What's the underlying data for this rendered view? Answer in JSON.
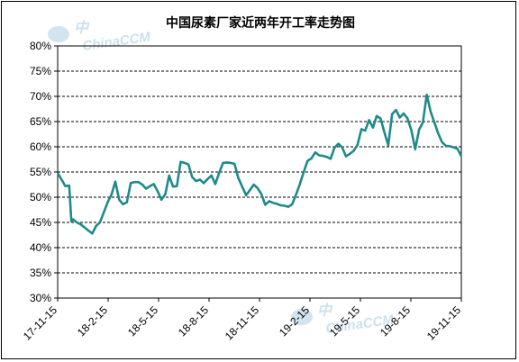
{
  "chart_data": {
    "type": "line",
    "title": "中国尿素厂家近两年开工率走势图",
    "xlabel": "",
    "ylabel": "",
    "ylim": [
      30,
      80
    ],
    "y_ticks": [
      "30%",
      "35%",
      "40%",
      "45%",
      "50%",
      "55%",
      "60%",
      "65%",
      "70%",
      "75%",
      "80%"
    ],
    "x_ticks": [
      "17-11-15",
      "18-2-15",
      "18-5-15",
      "18-8-15",
      "18-11-15",
      "19-2-15",
      "19-5-15",
      "19-8-15",
      "19-11-15"
    ],
    "grid": "horizontal dashed",
    "colors": {
      "line": "#1f8a8a",
      "grid": "#000000",
      "axis": "#000000"
    },
    "watermark": [
      "中",
      "ChinaCCM"
    ],
    "series": [
      {
        "name": "",
        "points": [
          [
            "2017-11-15",
            54.8
          ],
          [
            "2017-11-22",
            53.5
          ],
          [
            "2017-11-29",
            52.2
          ],
          [
            "2017-12-06",
            52.3
          ],
          [
            "2017-12-10",
            45.2
          ],
          [
            "2017-12-13",
            45.6
          ],
          [
            "2017-12-20",
            45.0
          ],
          [
            "2017-12-27",
            44.6
          ],
          [
            "2018-01-03",
            44.0
          ],
          [
            "2018-01-10",
            43.4
          ],
          [
            "2018-01-17",
            42.8
          ],
          [
            "2018-01-24",
            44.3
          ],
          [
            "2018-01-31",
            45.0
          ],
          [
            "2018-02-07",
            47.0
          ],
          [
            "2018-02-14",
            49.0
          ],
          [
            "2018-02-21",
            50.5
          ],
          [
            "2018-02-28",
            53.1
          ],
          [
            "2018-03-07",
            49.5
          ],
          [
            "2018-03-14",
            48.6
          ],
          [
            "2018-03-21",
            49.0
          ],
          [
            "2018-03-28",
            52.8
          ],
          [
            "2018-04-04",
            53.0
          ],
          [
            "2018-04-11",
            53.0
          ],
          [
            "2018-04-18",
            52.5
          ],
          [
            "2018-04-25",
            51.7
          ],
          [
            "2018-05-02",
            52.2
          ],
          [
            "2018-05-09",
            52.6
          ],
          [
            "2018-05-16",
            51.2
          ],
          [
            "2018-05-23",
            49.5
          ],
          [
            "2018-05-30",
            50.6
          ],
          [
            "2018-06-06",
            54.3
          ],
          [
            "2018-06-13",
            52.1
          ],
          [
            "2018-06-20",
            52.2
          ],
          [
            "2018-06-27",
            57.0
          ],
          [
            "2018-07-04",
            56.8
          ],
          [
            "2018-07-11",
            56.5
          ],
          [
            "2018-07-18",
            54.0
          ],
          [
            "2018-07-25",
            53.2
          ],
          [
            "2018-08-01",
            53.5
          ],
          [
            "2018-08-08",
            52.8
          ],
          [
            "2018-08-15",
            53.6
          ],
          [
            "2018-08-22",
            54.3
          ],
          [
            "2018-08-29",
            52.6
          ],
          [
            "2018-09-05",
            54.8
          ],
          [
            "2018-09-12",
            56.8
          ],
          [
            "2018-09-19",
            56.9
          ],
          [
            "2018-09-26",
            56.8
          ],
          [
            "2018-10-03",
            56.6
          ],
          [
            "2018-10-10",
            53.8
          ],
          [
            "2018-10-17",
            52.1
          ],
          [
            "2018-10-24",
            50.4
          ],
          [
            "2018-10-31",
            51.4
          ],
          [
            "2018-11-07",
            52.5
          ],
          [
            "2018-11-14",
            51.8
          ],
          [
            "2018-11-21",
            50.6
          ],
          [
            "2018-11-28",
            48.5
          ],
          [
            "2018-12-05",
            49.2
          ],
          [
            "2018-12-12",
            48.9
          ],
          [
            "2018-12-19",
            48.7
          ],
          [
            "2018-12-26",
            48.4
          ],
          [
            "2019-01-02",
            48.3
          ],
          [
            "2019-01-09",
            48.1
          ],
          [
            "2019-01-16",
            48.6
          ],
          [
            "2019-01-23",
            50.5
          ],
          [
            "2019-01-30",
            52.6
          ],
          [
            "2019-02-06",
            55.0
          ],
          [
            "2019-02-13",
            57.2
          ],
          [
            "2019-02-20",
            57.7
          ],
          [
            "2019-02-27",
            58.9
          ],
          [
            "2019-03-06",
            58.3
          ],
          [
            "2019-03-13",
            58.2
          ],
          [
            "2019-03-20",
            58.0
          ],
          [
            "2019-03-27",
            57.6
          ],
          [
            "2019-04-03",
            59.8
          ],
          [
            "2019-04-10",
            60.6
          ],
          [
            "2019-04-17",
            59.9
          ],
          [
            "2019-04-24",
            58.1
          ],
          [
            "2019-05-01",
            58.6
          ],
          [
            "2019-05-08",
            59.2
          ],
          [
            "2019-05-15",
            60.4
          ],
          [
            "2019-05-22",
            63.5
          ],
          [
            "2019-05-29",
            63.2
          ],
          [
            "2019-06-05",
            65.3
          ],
          [
            "2019-06-12",
            63.8
          ],
          [
            "2019-06-19",
            66.1
          ],
          [
            "2019-06-26",
            65.6
          ],
          [
            "2019-07-03",
            62.8
          ],
          [
            "2019-07-10",
            60.3
          ],
          [
            "2019-07-17",
            66.5
          ],
          [
            "2019-07-24",
            67.3
          ],
          [
            "2019-07-31",
            65.8
          ],
          [
            "2019-08-07",
            66.6
          ],
          [
            "2019-08-14",
            65.6
          ],
          [
            "2019-08-21",
            63.3
          ],
          [
            "2019-08-28",
            59.5
          ],
          [
            "2019-09-04",
            63.4
          ],
          [
            "2019-09-11",
            64.8
          ],
          [
            "2019-09-18",
            70.3
          ],
          [
            "2019-09-25",
            67.0
          ],
          [
            "2019-10-02",
            64.8
          ],
          [
            "2019-10-09",
            62.6
          ],
          [
            "2019-10-16",
            60.9
          ],
          [
            "2019-10-23",
            60.2
          ],
          [
            "2019-10-30",
            60.1
          ],
          [
            "2019-11-06",
            59.9
          ],
          [
            "2019-11-13",
            59.6
          ],
          [
            "2019-11-20",
            58.1
          ]
        ]
      }
    ]
  }
}
